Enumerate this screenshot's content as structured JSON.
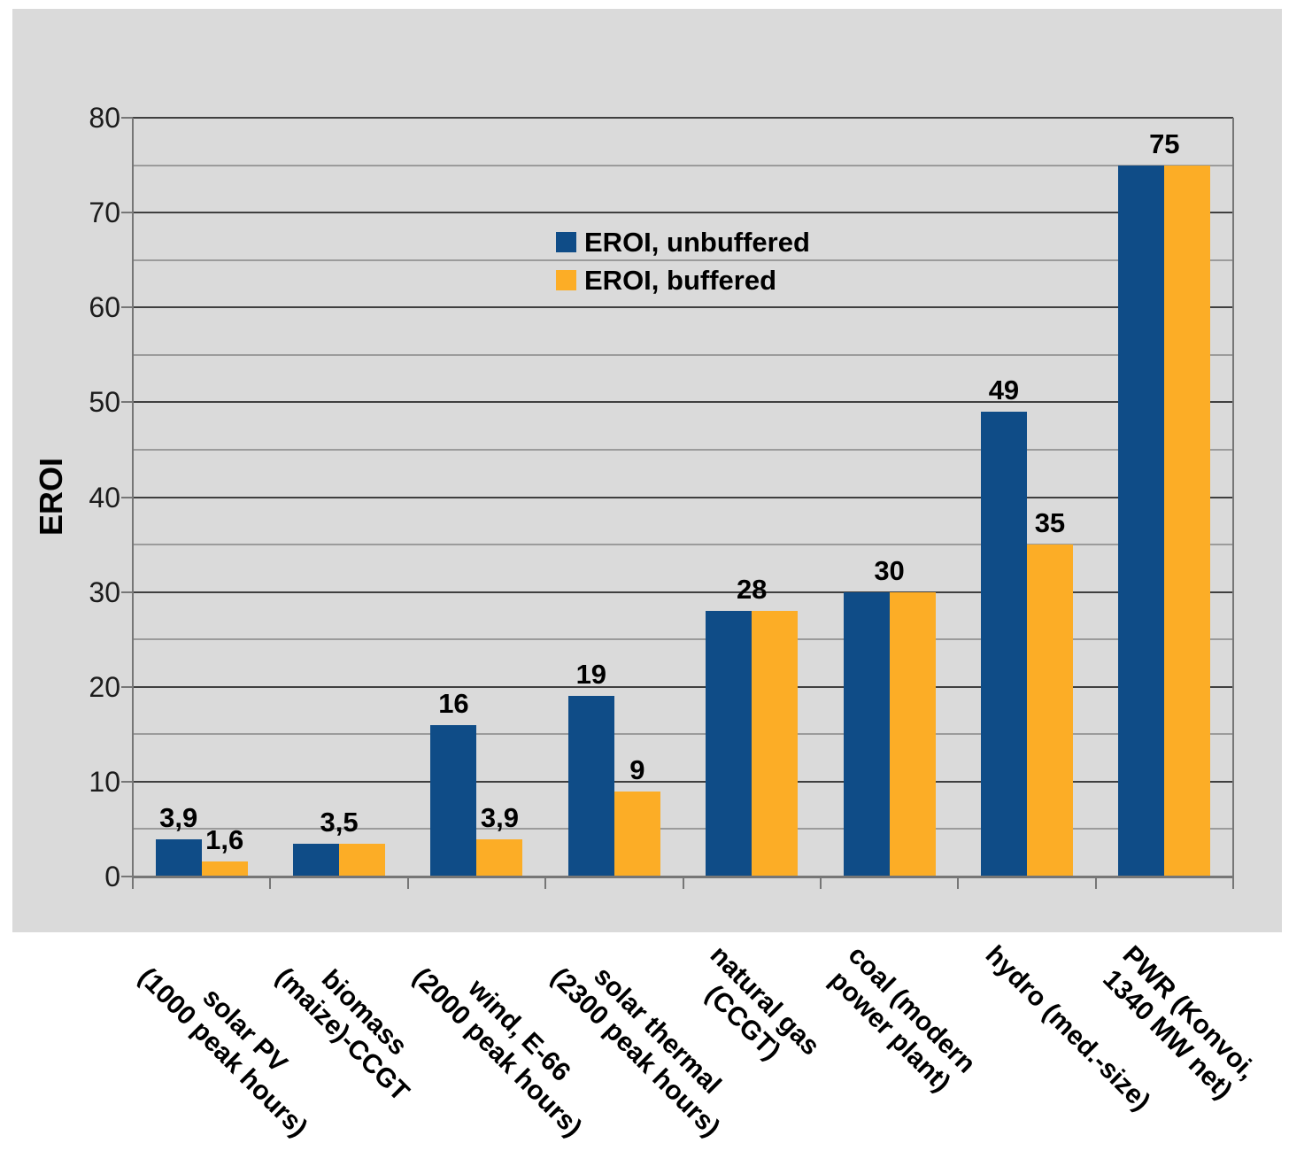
{
  "chart_data": {
    "type": "bar",
    "title": "",
    "ylabel": "EROI",
    "xlabel": "",
    "ylim": [
      0,
      80
    ],
    "ytick_step": 10,
    "minor_gridline_step": 5,
    "grid": true,
    "legend_position": "inside-top-center",
    "y_tick_labels": [
      "0",
      "10",
      "20",
      "30",
      "40",
      "50",
      "60",
      "70",
      "80"
    ],
    "categories": [
      "solar PV (1000 peak hours)",
      "biomass (maize)-CCGT",
      "wind, E-66 (2000 peak hours)",
      "solar thermal (2300 peak hours)",
      "natural gas (CCGT)",
      "coal (modern power plant)",
      "hydro (med.-size)",
      "PWR (Konvoi, 1340 MW net)"
    ],
    "category_label_lines": [
      [
        "solar PV",
        "(1000 peak hours)"
      ],
      [
        "biomass",
        "(maize)-CCGT"
      ],
      [
        "wind, E-66",
        "(2000 peak hours)"
      ],
      [
        "solar thermal",
        "(2300 peak hours)"
      ],
      [
        "natural gas",
        "(CCGT)"
      ],
      [
        "coal (modern",
        "power plant)"
      ],
      [
        "hydro (med.-size)"
      ],
      [
        "PWR (Konvoi,",
        "1340 MW net)"
      ]
    ],
    "series": [
      {
        "name": "EROI, unbuffered",
        "color": "#0f4c87",
        "values": [
          3.9,
          3.5,
          16,
          19,
          28,
          30,
          49,
          75
        ],
        "value_labels": [
          "3,9",
          "3,5",
          "16",
          "19",
          "28",
          "30",
          "49",
          "75"
        ]
      },
      {
        "name": "EROI, buffered",
        "color": "#fcad26",
        "values": [
          1.6,
          3.5,
          3.9,
          9,
          28,
          30,
          35,
          75
        ],
        "value_labels": [
          "1,6",
          "3,5",
          "3,9",
          "9",
          "28",
          "30",
          "35",
          "75"
        ]
      }
    ],
    "background_color": "#dadada"
  }
}
